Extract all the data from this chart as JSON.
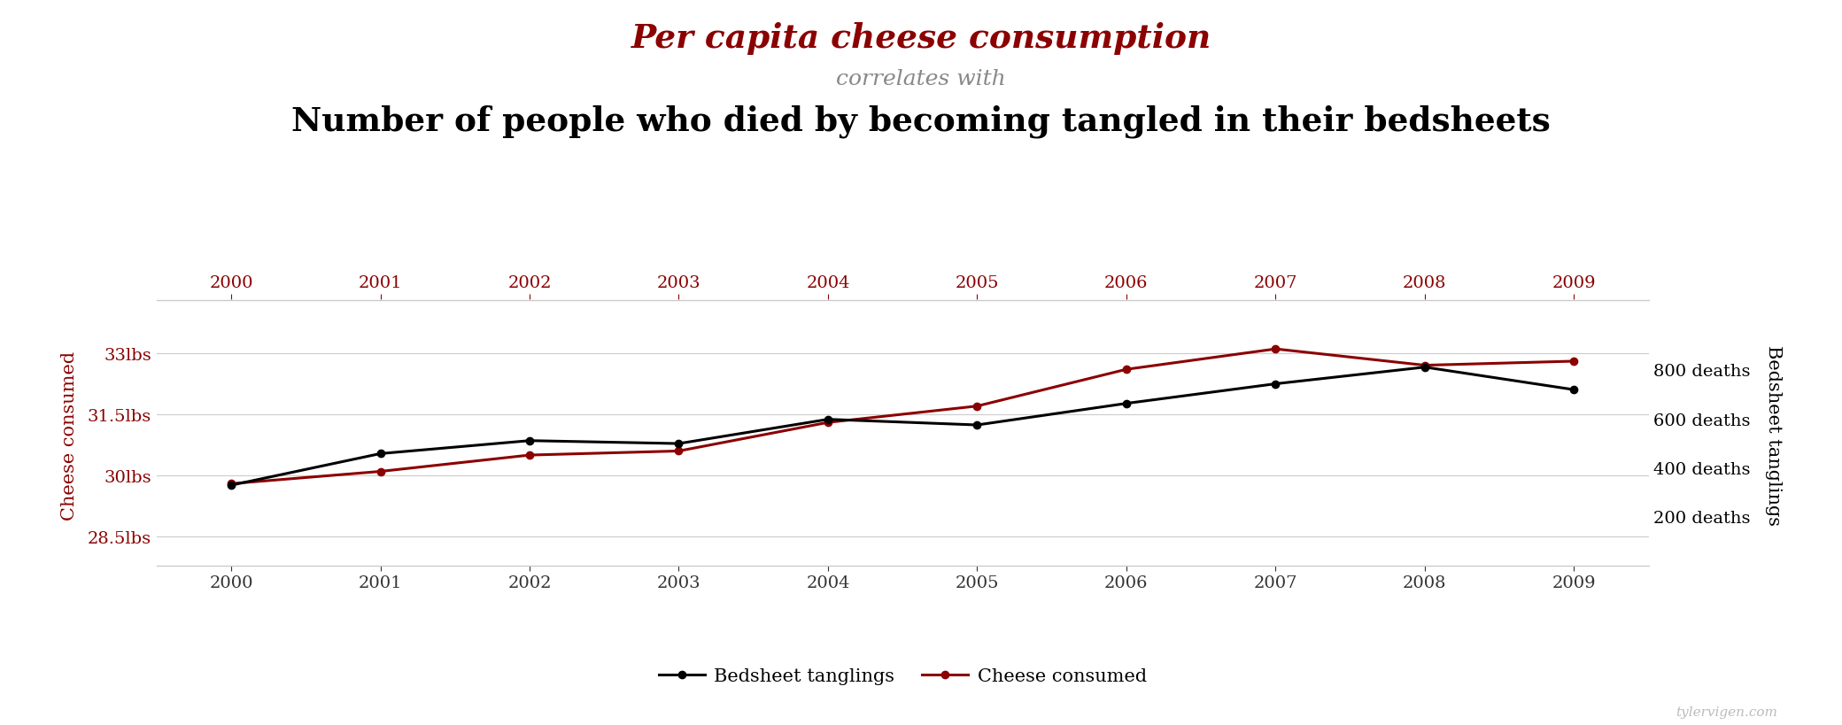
{
  "years": [
    2000,
    2001,
    2002,
    2003,
    2004,
    2005,
    2006,
    2007,
    2008,
    2009
  ],
  "cheese_lbs": [
    29.8,
    30.1,
    30.5,
    30.6,
    31.3,
    31.7,
    32.6,
    33.1,
    32.7,
    32.8
  ],
  "bedsheet_deaths": [
    327,
    456,
    509,
    497,
    596,
    573,
    661,
    741,
    809,
    717
  ],
  "title_line1": "Per capita cheese consumption",
  "title_line2": "correlates with",
  "title_line3": "Number of people who died by becoming tangled in their bedsheets",
  "title_line1_color": "#8b0000",
  "title_line2_color": "#888888",
  "title_line3_color": "#000000",
  "cheese_color": "#8b0000",
  "bedsheet_color": "#000000",
  "left_ylabel": "Cheese consumed",
  "right_ylabel": "Bedsheet tanglings",
  "left_yticks": [
    28.5,
    30.0,
    31.5,
    33.0
  ],
  "left_yticklabels": [
    "28.5lbs",
    "30lbs",
    "31.5lbs",
    "33lbs"
  ],
  "left_ylim": [
    27.8,
    34.2
  ],
  "right_yticks": [
    200,
    400,
    600,
    800
  ],
  "right_yticklabels": [
    "200 deaths",
    "400 deaths",
    "600 deaths",
    "800 deaths"
  ],
  "right_ylim": [
    0,
    1066.7
  ],
  "background_color": "#ffffff",
  "grid_color": "#cccccc",
  "watermark": "tylervigen.com",
  "legend_label_bedsheet": "Bedsheet tanglings",
  "legend_label_cheese": "Cheese consumed",
  "xlim": [
    1999.5,
    2009.5
  ],
  "top_xaxis_color": "#8b0000",
  "bottom_xaxis_color": "#333333"
}
